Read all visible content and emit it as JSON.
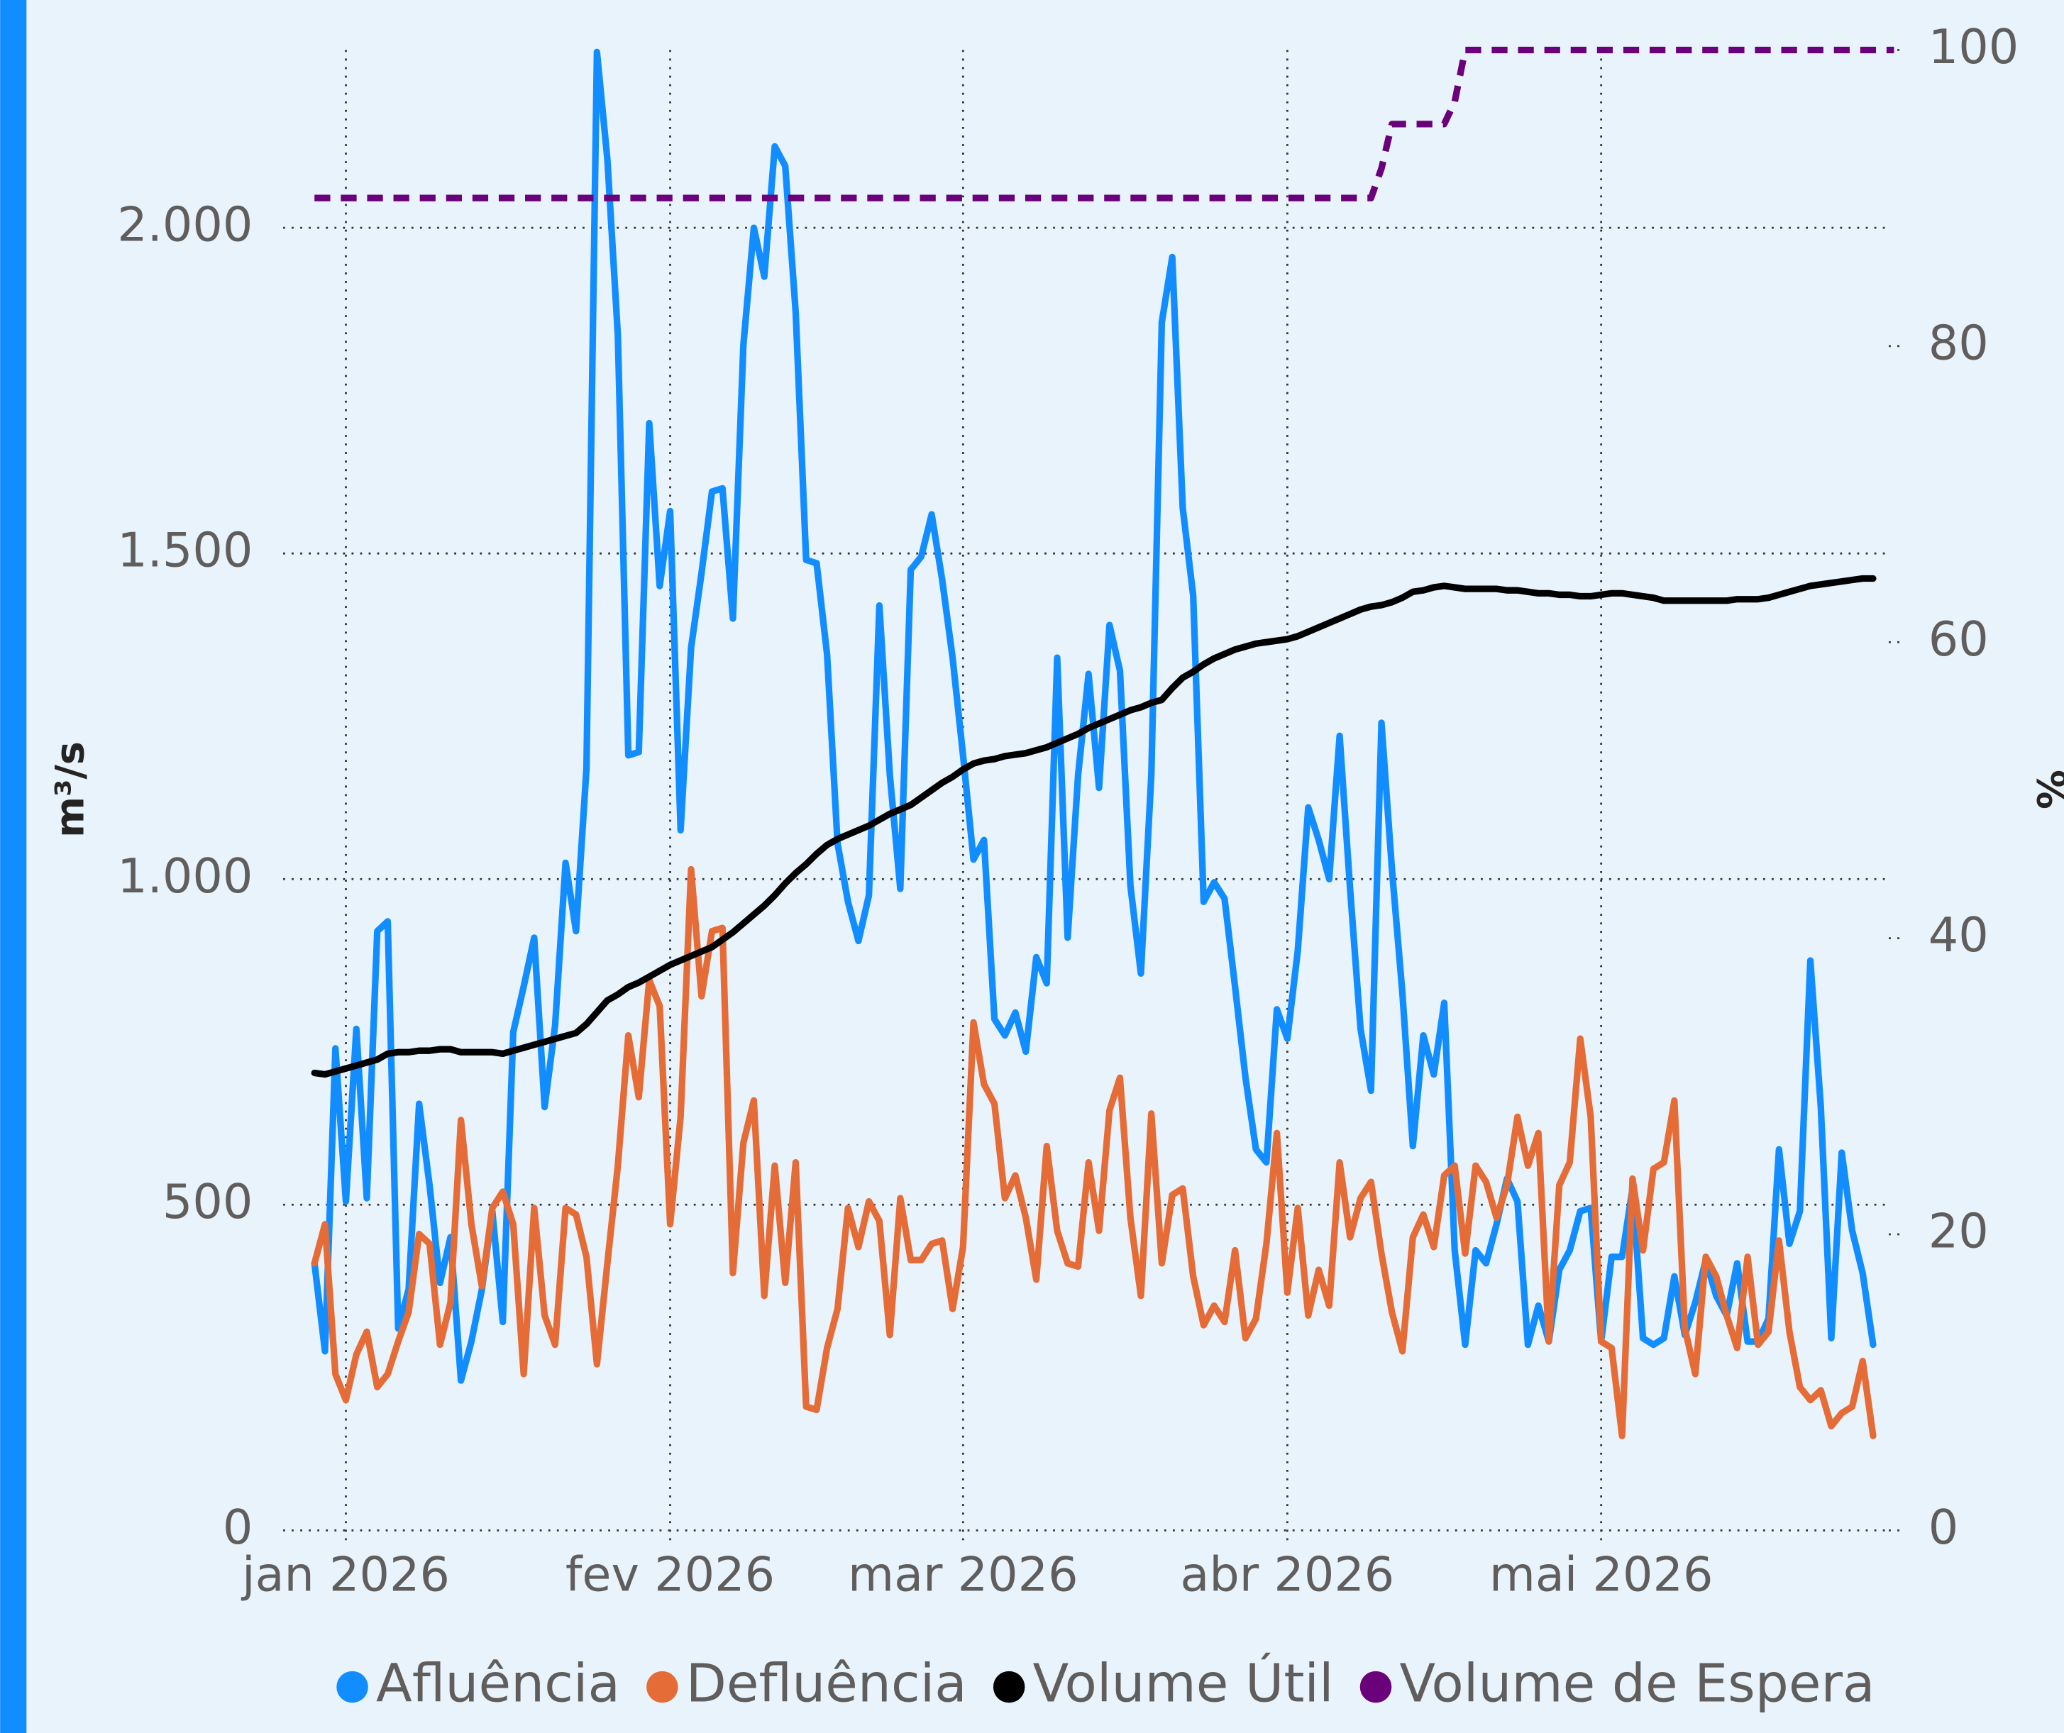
{
  "chart_data": {
    "type": "line",
    "x": [
      -3,
      -2,
      -1,
      0,
      1,
      2,
      3,
      4,
      5,
      6,
      7,
      8,
      9,
      10,
      11,
      12,
      13,
      14,
      15,
      16,
      17,
      18,
      19,
      20,
      21,
      22,
      23,
      24,
      25,
      26,
      27,
      28,
      29,
      30,
      31,
      32,
      33,
      34,
      35,
      36,
      37,
      38,
      39,
      40,
      41,
      42,
      43,
      44,
      45,
      46,
      47,
      48,
      49,
      50,
      51,
      52,
      53,
      54,
      55,
      56,
      57,
      58,
      59,
      60,
      61,
      62,
      63,
      64,
      65,
      66,
      67,
      68,
      69,
      70,
      71,
      72,
      73,
      74,
      75,
      76,
      77,
      78,
      79,
      80,
      81,
      82,
      83,
      84,
      85,
      86,
      87,
      88,
      89,
      90,
      91,
      92,
      93,
      94,
      95,
      96,
      97,
      98,
      99,
      100,
      101,
      102,
      103,
      104,
      105,
      106,
      107,
      108,
      109,
      110,
      111,
      112,
      113,
      114,
      115,
      116,
      117,
      118,
      119,
      120,
      121,
      122,
      123,
      124,
      125,
      126,
      127,
      128,
      129,
      130,
      131,
      132,
      133,
      134,
      135,
      136,
      137,
      138,
      139,
      140,
      141,
      142,
      143,
      144,
      145,
      146,
      147,
      148
    ],
    "xlim": [
      -6,
      147.5
    ],
    "xticks": [
      {
        "value": 0,
        "label": "jan 2026"
      },
      {
        "value": 31,
        "label": "fev 2026"
      },
      {
        "value": 59,
        "label": "mar 2026"
      },
      {
        "value": 90,
        "label": "abr 2026"
      },
      {
        "value": 120,
        "label": "mai 2026"
      }
    ],
    "ylabel": "m³/s",
    "ylim": [
      0,
      2273
    ],
    "yticks": [
      0,
      500,
      {
        "value": 1000,
        "label": "1.000"
      },
      {
        "value": 1500,
        "label": "1.500"
      },
      {
        "value": 2000,
        "label": "2.000"
      }
    ],
    "y2label": "%",
    "y2lim": [
      0,
      100
    ],
    "y2ticks": [
      0,
      20,
      40,
      60,
      80,
      100
    ],
    "grid": true,
    "legend": "bottom",
    "series": [
      {
        "name": "Afluência",
        "color": "#118dff",
        "values": [
          410,
          275,
          740,
          505,
          770,
          510,
          920,
          935,
          310,
          370,
          655,
          530,
          380,
          450,
          230,
          290,
          370,
          490,
          320,
          765,
          835,
          910,
          650,
          775,
          1025,
          920,
          1170,
          2270,
          2105,
          1835,
          1190,
          1195,
          1700,
          1450,
          1565,
          1075,
          1355,
          1470,
          1595,
          1600,
          1400,
          1820,
          2000,
          1925,
          2125,
          2095,
          1870,
          1490,
          1485,
          1345,
          1055,
          965,
          905,
          975,
          1420,
          1160,
          985,
          1475,
          1495,
          1560,
          1460,
          1340,
          1190,
          1030,
          1060,
          785,
          760,
          795,
          735,
          880,
          840,
          1340,
          910,
          1160,
          1315,
          1140,
          1390,
          1320,
          990,
          855,
          1160,
          1855,
          1955,
          1570,
          1435,
          965,
          995,
          970,
          835,
          695,
          585,
          565,
          800,
          755,
          890,
          1110,
          1060,
          1000,
          1220,
          985,
          770,
          675,
          1240,
          1015,
          825,
          590,
          760,
          700,
          810,
          430,
          285,
          430,
          410,
          470,
          540,
          505,
          285,
          345,
          290,
          400,
          430,
          490,
          495,
          290,
          420,
          420,
          525,
          295,
          285,
          295,
          390,
          300,
          350,
          415,
          360,
          330,
          410,
          290,
          290,
          325,
          585,
          440,
          490,
          875,
          650,
          295,
          580,
          460,
          395,
          285,
          null,
          null
        ]
      },
      {
        "name": "Defluência",
        "color": "#e66c37",
        "values": [
          410,
          470,
          240,
          200,
          270,
          305,
          220,
          240,
          290,
          335,
          455,
          440,
          285,
          350,
          630,
          470,
          375,
          495,
          520,
          470,
          240,
          495,
          330,
          285,
          495,
          485,
          420,
          255,
          410,
          560,
          760,
          665,
          845,
          805,
          470,
          635,
          1015,
          820,
          920,
          925,
          395,
          595,
          660,
          360,
          560,
          380,
          565,
          190,
          185,
          280,
          340,
          495,
          435,
          505,
          475,
          300,
          510,
          415,
          415,
          440,
          445,
          340,
          435,
          780,
          685,
          655,
          510,
          545,
          480,
          385,
          590,
          460,
          410,
          405,
          565,
          460,
          645,
          695,
          480,
          360,
          640,
          410,
          515,
          525,
          390,
          315,
          345,
          320,
          430,
          295,
          325,
          440,
          610,
          365,
          495,
          330,
          400,
          345,
          565,
          450,
          510,
          535,
          425,
          335,
          275,
          450,
          485,
          435,
          545,
          560,
          425,
          560,
          535,
          480,
          530,
          635,
          560,
          610,
          290,
          530,
          565,
          755,
          635,
          290,
          280,
          145,
          540,
          430,
          555,
          565,
          660,
          310,
          240,
          420,
          390,
          330,
          280,
          420,
          285,
          305,
          445,
          305,
          220,
          200,
          215,
          160,
          180,
          190,
          260,
          145,
          null,
          null
        ]
      },
      {
        "name": "Volume Útil",
        "color": "#000000",
        "axis": "y2",
        "values": [
          30.9,
          30.8,
          31.0,
          31.2,
          31.4,
          31.6,
          31.8,
          32.2,
          32.3,
          32.3,
          32.4,
          32.4,
          32.5,
          32.5,
          32.3,
          32.3,
          32.3,
          32.3,
          32.2,
          32.4,
          32.6,
          32.8,
          33.0,
          33.2,
          33.4,
          33.6,
          34.2,
          35.0,
          35.8,
          36.2,
          36.7,
          37.0,
          37.4,
          37.8,
          38.2,
          38.5,
          38.8,
          39.1,
          39.4,
          39.9,
          40.4,
          41.0,
          41.6,
          42.2,
          42.9,
          43.7,
          44.4,
          45.0,
          45.7,
          46.3,
          46.7,
          47.0,
          47.3,
          47.6,
          48.0,
          48.4,
          48.7,
          49.0,
          49.5,
          50.0,
          50.5,
          50.9,
          51.4,
          51.8,
          52.0,
          52.1,
          52.3,
          52.4,
          52.5,
          52.7,
          52.9,
          53.2,
          53.5,
          53.8,
          54.2,
          54.5,
          54.8,
          55.1,
          55.4,
          55.6,
          55.9,
          56.1,
          56.9,
          57.6,
          58.0,
          58.5,
          58.9,
          59.2,
          59.5,
          59.7,
          59.9,
          60.0,
          60.1,
          60.2,
          60.4,
          60.7,
          61.0,
          61.3,
          61.6,
          61.9,
          62.2,
          62.4,
          62.5,
          62.7,
          63.0,
          63.4,
          63.5,
          63.7,
          63.8,
          63.7,
          63.6,
          63.6,
          63.6,
          63.6,
          63.5,
          63.5,
          63.4,
          63.3,
          63.3,
          63.2,
          63.2,
          63.1,
          63.1,
          63.2,
          63.3,
          63.3,
          63.2,
          63.1,
          63.0,
          62.8,
          62.8,
          62.8,
          62.8,
          62.8,
          62.8,
          62.8,
          62.9,
          62.9,
          62.9,
          63.0,
          63.2,
          63.4,
          63.6,
          63.8,
          63.9,
          64.0,
          64.1,
          64.2,
          64.3,
          64.3,
          null,
          null
        ]
      },
      {
        "name": "Volume de Espera",
        "color": "#6b007b",
        "axis": "y2",
        "line_style": "dashed",
        "values": [
          90,
          90,
          90,
          90,
          90,
          90,
          90,
          90,
          90,
          90,
          90,
          90,
          90,
          90,
          90,
          90,
          90,
          90,
          90,
          90,
          90,
          90,
          90,
          90,
          90,
          90,
          90,
          90,
          90,
          90,
          90,
          90,
          90,
          90,
          90,
          90,
          90,
          90,
          90,
          90,
          90,
          90,
          90,
          90,
          90,
          90,
          90,
          90,
          90,
          90,
          90,
          90,
          90,
          90,
          90,
          90,
          90,
          90,
          90,
          90,
          90,
          90,
          90,
          90,
          90,
          90,
          90,
          90,
          90,
          90,
          90,
          90,
          90,
          90,
          90,
          90,
          90,
          90,
          90,
          90,
          90,
          90,
          90,
          90,
          90,
          90,
          90,
          90,
          90,
          90,
          90,
          90,
          90,
          90,
          90,
          90,
          90,
          90,
          90,
          90,
          90,
          90,
          92,
          95,
          95,
          95,
          95,
          95,
          95,
          96.5,
          100,
          100,
          100,
          100,
          100,
          100,
          100,
          100,
          100,
          100,
          100,
          100,
          100,
          100,
          100,
          100,
          100,
          100,
          100,
          100,
          100,
          100,
          100,
          100,
          100,
          100,
          100,
          100,
          100,
          100,
          100,
          100,
          100,
          100,
          100,
          100,
          100,
          100,
          100,
          100,
          100,
          100
        ]
      }
    ]
  }
}
